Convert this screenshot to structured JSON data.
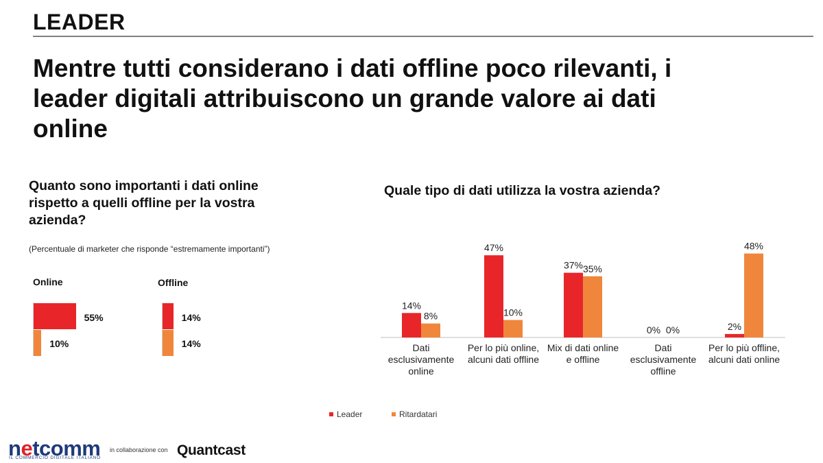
{
  "header": {
    "section": "LEADER",
    "headline": "Mentre tutti considerano i dati offline poco rilevanti, i leader digitali attribuiscono un grande valore ai dati online"
  },
  "left_panel": {
    "question": "Quanto sono importanti i dati online rispetto a quelli offline per la vostra azienda?",
    "note": "(Percentuale di marketer che risponde “estremamente importanti”)"
  },
  "right_panel": {
    "question": "Quale tipo di dati utilizza la vostra azienda?"
  },
  "legend": {
    "leader": "Leader",
    "laggards": "Ritardatari"
  },
  "colors": {
    "leader": "#e8262a",
    "laggards": "#f0863c"
  },
  "footer": {
    "logo_part1": "n",
    "logo_e": "e",
    "logo_part2": "tcomm",
    "logo_tagline": "IL COMMERCIO DIGITALE ITALIANO",
    "collab_text": "in collaborazione con",
    "partner": "Quantcast"
  },
  "chart_data": [
    {
      "type": "bar",
      "orientation": "horizontal",
      "groups": [
        {
          "label": "Online",
          "leader": 55,
          "laggards": 10,
          "leader_label": "55%",
          "laggards_label": "10%"
        },
        {
          "label": "Offline",
          "leader": 14,
          "laggards": 14,
          "leader_label": "14%",
          "laggards_label": "14%"
        }
      ]
    },
    {
      "type": "bar",
      "categories": [
        "Dati esclusivamente online",
        "Per lo più online, alcuni dati offline",
        "Mix di dati online e offline",
        "Dati esclusivamente offline",
        "Per lo più offline, alcuni dati online"
      ],
      "category_lines": [
        [
          "Dati",
          "esclusivamente",
          "online"
        ],
        [
          "Per lo più online,",
          "alcuni dati offline"
        ],
        [
          "Mix di dati online",
          "e offline"
        ],
        [
          "Dati",
          "esclusivamente",
          "offline"
        ],
        [
          "Per lo più offline,",
          "alcuni dati online"
        ]
      ],
      "series": [
        {
          "name": "Leader",
          "values": [
            14,
            47,
            37,
            0,
            2
          ],
          "labels": [
            "14%",
            "47%",
            "37%",
            "0%",
            "2%"
          ]
        },
        {
          "name": "Ritardatari",
          "values": [
            8,
            10,
            35,
            0,
            48
          ],
          "labels": [
            "8%",
            "10%",
            "35%",
            "0%",
            "48%"
          ]
        }
      ]
    }
  ]
}
